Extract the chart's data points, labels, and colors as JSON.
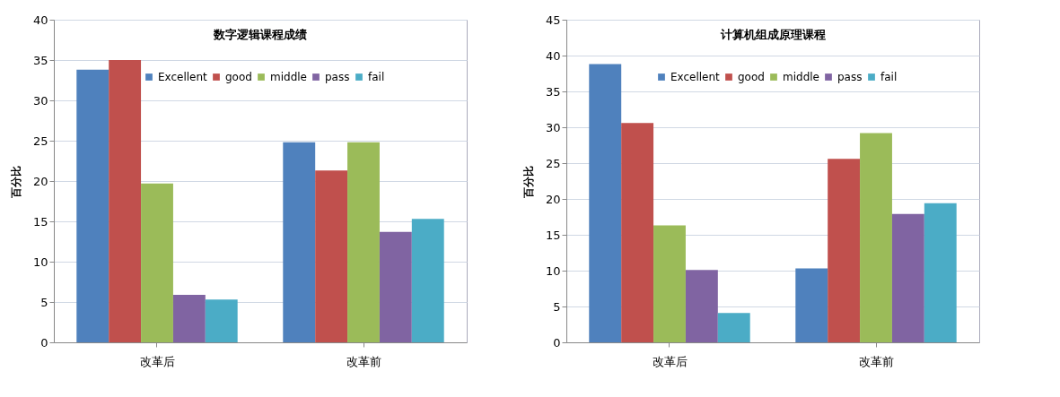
{
  "chart_data": [
    {
      "type": "bar",
      "title": "数字逻辑课程成绩",
      "ylabel": "百分比",
      "categories": [
        "改革后",
        "改革前"
      ],
      "series": [
        {
          "name": "Excellent",
          "color": "#4f81bd",
          "values": [
            33.8,
            24.8
          ]
        },
        {
          "name": "good",
          "color": "#c0504d",
          "values": [
            35.0,
            21.3
          ]
        },
        {
          "name": "middle",
          "color": "#9bbb59",
          "values": [
            19.7,
            24.8
          ]
        },
        {
          "name": "pass",
          "color": "#8064a2",
          "values": [
            5.9,
            13.7
          ]
        },
        {
          "name": "fail",
          "color": "#4bacc6",
          "values": [
            5.3,
            15.3
          ]
        }
      ],
      "ylim": [
        0,
        40
      ],
      "yticks": [
        0,
        5,
        10,
        15,
        20,
        25,
        30,
        35,
        40
      ],
      "grid": "y",
      "legend": "top right"
    },
    {
      "type": "bar",
      "title": "计算机组成原理课程",
      "ylabel": "百分比",
      "categories": [
        "改革后",
        "改革前"
      ],
      "series": [
        {
          "name": "Excellent",
          "color": "#4f81bd",
          "values": [
            38.8,
            10.3
          ]
        },
        {
          "name": "good",
          "color": "#c0504d",
          "values": [
            30.6,
            25.6
          ]
        },
        {
          "name": "middle",
          "color": "#9bbb59",
          "values": [
            16.3,
            29.2
          ]
        },
        {
          "name": "pass",
          "color": "#8064a2",
          "values": [
            10.1,
            17.9
          ]
        },
        {
          "name": "fail",
          "color": "#4bacc6",
          "values": [
            4.1,
            19.4
          ]
        }
      ],
      "ylim": [
        0,
        45
      ],
      "yticks": [
        0,
        5,
        10,
        15,
        20,
        25,
        30,
        35,
        40,
        45
      ],
      "grid": "y",
      "legend": "top right"
    }
  ]
}
